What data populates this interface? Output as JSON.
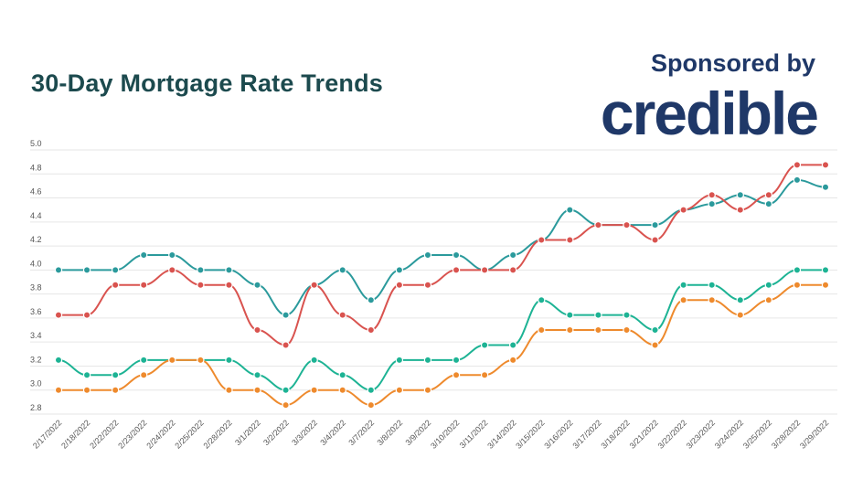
{
  "header": {
    "title": "30-Day Mortgage Rate Trends",
    "sponsor_label": "Sponsored by",
    "logo_text": "credible"
  },
  "chart_data": {
    "type": "line",
    "title": "30-Day Mortgage Rate Trends",
    "xlabel": "",
    "ylabel": "",
    "ylim": [
      2.8,
      5.0
    ],
    "yticks": [
      "2.8",
      "3.0",
      "3.2",
      "3.4",
      "3.6",
      "3.8",
      "4.0",
      "4.2",
      "4.4",
      "4.6",
      "4.8",
      "5.0"
    ],
    "grid": true,
    "categories": [
      "2/17/2022",
      "2/18/2022",
      "2/22/2022",
      "2/23/2022",
      "2/24/2022",
      "2/25/2022",
      "2/28/2022",
      "3/1/2022",
      "3/2/2022",
      "3/3/2022",
      "3/4/2022",
      "3/7/2022",
      "3/8/2022",
      "3/9/2022",
      "3/10/2022",
      "3/11/2022",
      "3/14/2022",
      "3/15/2022",
      "3/16/2022",
      "3/17/2022",
      "3/18/2022",
      "3/21/2022",
      "3/22/2022",
      "3/23/2022",
      "3/24/2022",
      "3/25/2022",
      "3/28/2022",
      "3/29/2022"
    ],
    "series": [
      {
        "color": "#2b9a9c",
        "values": [
          4.0,
          4.0,
          4.0,
          4.125,
          4.125,
          4.0,
          4.0,
          3.875,
          3.625,
          3.875,
          4.0,
          3.75,
          4.0,
          4.125,
          4.125,
          4.0,
          4.125,
          4.25,
          4.5,
          4.375,
          4.375,
          4.375,
          4.5,
          4.55,
          4.625,
          4.55,
          4.75,
          4.69
        ]
      },
      {
        "color": "#d9534f",
        "values": [
          3.625,
          3.625,
          3.875,
          3.875,
          4.0,
          3.875,
          3.875,
          3.5,
          3.375,
          3.875,
          3.625,
          3.5,
          3.875,
          3.875,
          4.0,
          4.0,
          4.0,
          4.25,
          4.25,
          4.375,
          4.375,
          4.25,
          4.5,
          4.625,
          4.5,
          4.625,
          4.875,
          4.875
        ]
      },
      {
        "color": "#1db394",
        "values": [
          3.25,
          3.125,
          3.125,
          3.25,
          3.25,
          3.25,
          3.25,
          3.125,
          3.0,
          3.25,
          3.125,
          3.0,
          3.25,
          3.25,
          3.25,
          3.375,
          3.375,
          3.75,
          3.625,
          3.625,
          3.625,
          3.5,
          3.875,
          3.875,
          3.75,
          3.875,
          4.0,
          4.0
        ]
      },
      {
        "color": "#ee8a2d",
        "values": [
          3.0,
          3.0,
          3.0,
          3.125,
          3.25,
          3.25,
          3.0,
          3.0,
          2.875,
          3.0,
          3.0,
          2.875,
          3.0,
          3.0,
          3.125,
          3.125,
          3.25,
          3.5,
          3.5,
          3.5,
          3.5,
          3.375,
          3.75,
          3.75,
          3.625,
          3.75,
          3.875,
          3.875
        ]
      }
    ]
  }
}
